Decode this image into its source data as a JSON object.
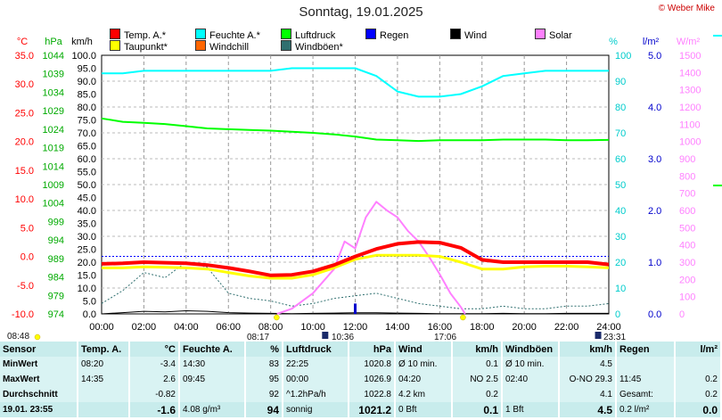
{
  "header": {
    "title": "Sonntag, 19.01.2025",
    "copyright": "© Weber Mike"
  },
  "legend": [
    {
      "label": "Temp. A.*",
      "color": "#ff0000"
    },
    {
      "label": "Feuchte A.*",
      "color": "#00ffff"
    },
    {
      "label": "Luftdruck",
      "color": "#00ff00"
    },
    {
      "label": "Regen",
      "color": "#0000ff"
    },
    {
      "label": "Wind",
      "color": "#000000"
    },
    {
      "label": "Solar",
      "color": "#ff80ff"
    },
    {
      "label": "Taupunkt*",
      "color": "#ffff00"
    },
    {
      "label": "Windchill",
      "color": "#ff6600"
    },
    {
      "label": "Windböen*",
      "color": "#2f6f6f"
    }
  ],
  "axes": {
    "temp": {
      "unit": "°C",
      "ticks": [
        "35.0",
        "30.0",
        "25.0",
        "20.0",
        "15.0",
        "10.0",
        "5.0",
        "0.0",
        "-5.0",
        "-10.0"
      ],
      "color": "#ff0000",
      "range": [
        -10,
        35
      ]
    },
    "pressure": {
      "unit": "hPa",
      "ticks": [
        "1044",
        "1039",
        "1034",
        "1029",
        "1024",
        "1019",
        "1014",
        "1009",
        "1004",
        "999",
        "994",
        "989",
        "984",
        "979",
        "974"
      ],
      "color": "#00aa00",
      "range": [
        974,
        1044
      ]
    },
    "wind": {
      "unit": "km/h",
      "ticks": [
        "100.0",
        "95.0",
        "90.0",
        "85.0",
        "80.0",
        "75.0",
        "70.0",
        "65.0",
        "60.0",
        "55.0",
        "50.0",
        "45.0",
        "40.0",
        "35.0",
        "30.0",
        "25.0",
        "20.0",
        "15.0",
        "10.0",
        "5.0",
        "0.0"
      ],
      "color": "#000000",
      "range": [
        0,
        100
      ]
    },
    "humidity": {
      "unit": "%",
      "ticks": [
        "100",
        "90",
        "80",
        "70",
        "60",
        "50",
        "40",
        "30",
        "20",
        "10",
        "0"
      ],
      "color": "#00cccc",
      "range": [
        0,
        100
      ]
    },
    "rain": {
      "unit": "l/m²",
      "ticks": [
        "5.0",
        "4.0",
        "3.0",
        "2.0",
        "1.0",
        "0.0"
      ],
      "color": "#0000cc",
      "range": [
        0,
        5
      ]
    },
    "solar": {
      "unit": "W/m²",
      "ticks": [
        "1500",
        "1400",
        "1300",
        "1200",
        "1100",
        "1000",
        "900",
        "800",
        "700",
        "600",
        "500",
        "400",
        "300",
        "200",
        "100",
        "0"
      ],
      "color": "#ff80ff",
      "range": [
        0,
        1500
      ]
    },
    "time": {
      "ticks": [
        "00:00",
        "02:00",
        "04:00",
        "06:00",
        "08:00",
        "10:00",
        "12:00",
        "14:00",
        "16:00",
        "18:00",
        "20:00",
        "22:00",
        "24:00"
      ]
    }
  },
  "sun": {
    "sunrise": "08:17",
    "sunset": "17:06",
    "moonrise": "10:36",
    "moonset": "23:31",
    "left_time": "08:48"
  },
  "chart_data": {
    "type": "line",
    "x_unit": "hours",
    "x": [
      0,
      1,
      2,
      3,
      4,
      5,
      6,
      7,
      8,
      9,
      10,
      11,
      12,
      13,
      14,
      15,
      16,
      17,
      18,
      19,
      20,
      21,
      22,
      23,
      24
    ],
    "series": [
      {
        "name": "Temp. A.*",
        "axis": "temp",
        "values": [
          -1.3,
          -1.2,
          -1.0,
          -1.1,
          -1.2,
          -1.5,
          -2.0,
          -2.6,
          -3.3,
          -3.2,
          -2.6,
          -1.5,
          0.0,
          1.3,
          2.2,
          2.5,
          2.4,
          1.5,
          -0.6,
          -1.0,
          -1.0,
          -1.0,
          -1.0,
          -1.0,
          -1.4
        ]
      },
      {
        "name": "Taupunkt*",
        "axis": "temp",
        "values": [
          -2.0,
          -2.0,
          -1.8,
          -1.9,
          -2.0,
          -2.2,
          -2.8,
          -3.4,
          -3.8,
          -3.8,
          -3.2,
          -2.0,
          -0.5,
          0.2,
          0.2,
          0.2,
          0.0,
          -1.0,
          -2.2,
          -2.2,
          -1.8,
          -1.7,
          -1.7,
          -1.8,
          -2.0
        ]
      },
      {
        "name": "Feuchte A.*",
        "axis": "humidity",
        "values": [
          93,
          93,
          94,
          94,
          94,
          94,
          94,
          94,
          94,
          95,
          95,
          95,
          95,
          92,
          86,
          84,
          84,
          85,
          88,
          92,
          93,
          94,
          94,
          94,
          94
        ]
      },
      {
        "name": "Luftdruck",
        "axis": "pressure",
        "values": [
          1026.9,
          1026.0,
          1025.7,
          1025.4,
          1024.8,
          1024.2,
          1024.0,
          1023.8,
          1023.6,
          1023.3,
          1023.0,
          1022.6,
          1022.0,
          1021.2,
          1021.0,
          1020.8,
          1021.0,
          1021.0,
          1021.0,
          1021.2,
          1021.2,
          1021.2,
          1021.0,
          1021.0,
          1021.1
        ]
      },
      {
        "name": "Windböen*",
        "axis": "wind",
        "values": [
          4,
          9,
          16,
          14,
          20,
          18,
          8,
          6,
          5,
          3,
          4,
          6,
          7,
          8,
          6,
          4,
          3,
          2,
          2,
          3,
          2,
          2,
          3,
          3,
          4
        ]
      },
      {
        "name": "Wind",
        "axis": "wind",
        "values": [
          0,
          0.5,
          1,
          0.8,
          1.2,
          1,
          0.5,
          0.3,
          0.2,
          0.1,
          0.2,
          0.3,
          0.4,
          0.4,
          0.3,
          0.2,
          0.1,
          0.1,
          0.1,
          0.2,
          0.1,
          0.1,
          0.2,
          0.2,
          0.2
        ]
      },
      {
        "name": "Solar",
        "axis": "solar",
        "x": [
          8.3,
          9,
          10,
          11,
          11.5,
          12,
          12.5,
          13,
          13.5,
          14,
          14.5,
          15,
          15.5,
          16,
          16.5,
          17,
          17.2
        ],
        "values": [
          0,
          30,
          120,
          260,
          420,
          380,
          560,
          650,
          600,
          560,
          480,
          420,
          330,
          230,
          120,
          40,
          0
        ]
      },
      {
        "name": "Regen",
        "axis": "rain",
        "x": [
          12.0
        ],
        "values": [
          0.2
        ]
      }
    ],
    "reference_line": {
      "axis": "temp",
      "value": 0.0,
      "color": "#0000ff"
    }
  },
  "stats": {
    "headers": [
      "Sensor",
      "Temp. A.",
      "°C",
      "Feuchte A.",
      "%",
      "Luftdruck",
      "hPa",
      "Wind",
      "km/h",
      "Windböen",
      "km/h",
      "Regen",
      "l/m²"
    ],
    "rows": [
      [
        "MinWert",
        "08:20",
        "-3.4",
        "14:30",
        "83",
        "22:25",
        "1020.8",
        "Ø 10 min.",
        "0.1",
        "Ø 10 min.",
        "4.5",
        "",
        ""
      ],
      [
        "MaxWert",
        "14:35",
        "2.6",
        "09:45",
        "95",
        "00:00",
        "1026.9",
        "04:20",
        "NO 2.5",
        "02:40",
        "O-NO 29.3",
        "11:45",
        "0.2"
      ],
      [
        "Durchschnitt",
        "",
        "-0.82",
        "",
        "92",
        "^1.2hPa/h",
        "1022.8",
        "4.2 km",
        "0.2",
        "",
        "4.1",
        "Gesamt:",
        "0.2"
      ],
      [
        "19.01. 23:55",
        "",
        "-1.6",
        "4.08 g/m³",
        "94",
        "sonnig",
        "1021.2",
        "0 Bft",
        "0.1",
        "1 Bft",
        "4.5",
        "0.2 l/m²",
        "0.0"
      ]
    ]
  }
}
